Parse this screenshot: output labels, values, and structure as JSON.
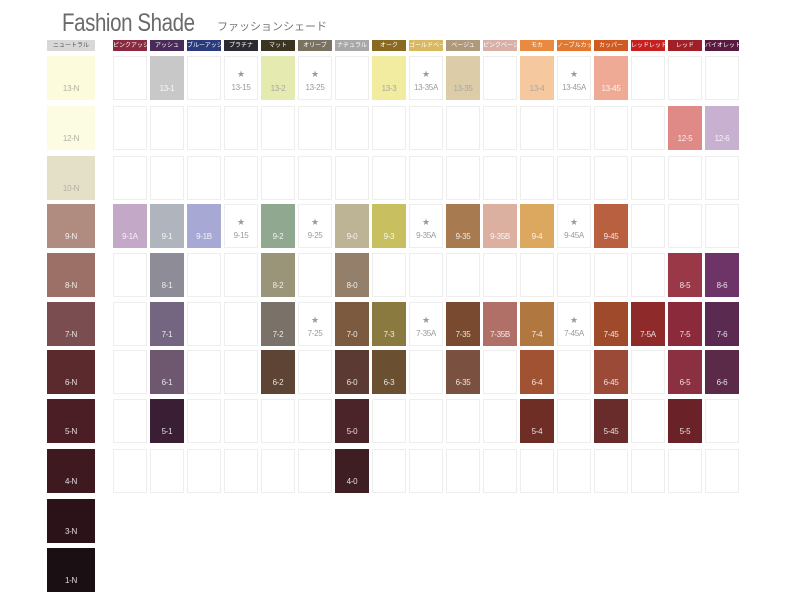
{
  "title": "Fashion Shade",
  "subtitle": "ファッションシェード",
  "neutral": {
    "header": {
      "label": "ニュートラル",
      "color": "#d8d8d8"
    },
    "shades": [
      {
        "label": "13-N",
        "color": "#fcfcdc"
      },
      {
        "label": "12-N",
        "color": "#fcfce2"
      },
      {
        "label": "10-N",
        "color": "#e4e0c8"
      },
      {
        "label": "9-N",
        "color": "#b08c80"
      },
      {
        "label": "8-N",
        "color": "#9c7066"
      },
      {
        "label": "7-N",
        "color": "#7a4e50"
      },
      {
        "label": "6-N",
        "color": "#5a2a2c"
      },
      {
        "label": "5-N",
        "color": "#4a1e24"
      },
      {
        "label": "4-N",
        "color": "#3e1a20"
      },
      {
        "label": "3-N",
        "color": "#2a1218"
      },
      {
        "label": "1-N",
        "color": "#1a1014"
      }
    ]
  },
  "columns": [
    {
      "label": "ピンクアッシュ",
      "color": "#8a2a40"
    },
    {
      "label": "アッシュ",
      "color": "#4a2a5a"
    },
    {
      "label": "ブルーアッシュ",
      "color": "#2a3a7a"
    },
    {
      "label": "プラチナ",
      "color": "#2a2a30"
    },
    {
      "label": "マット",
      "color": "#3a3420"
    },
    {
      "label": "オリーブ",
      "color": "#7a7260"
    },
    {
      "label": "ナチュラル",
      "color": "#a8a8a8"
    },
    {
      "label": "オーク",
      "color": "#8a6a20"
    },
    {
      "label": "ゴールドベージュ",
      "color": "#d8b860"
    },
    {
      "label": "ベージュ",
      "color": "#b0987a"
    },
    {
      "label": "ピンクベージュ",
      "color": "#d8b0a8"
    },
    {
      "label": "モカ",
      "color": "#e88a40"
    },
    {
      "label": "ノーブルカッパー",
      "color": "#e07830"
    },
    {
      "label": "カッパー",
      "color": "#d05a20"
    },
    {
      "label": "レッドレッド",
      "color": "#c82020"
    },
    {
      "label": "レッド",
      "color": "#a02028"
    },
    {
      "label": "バイオレット",
      "color": "#5a1a40"
    }
  ],
  "grid": [
    [
      null,
      {
        "label": "13-1",
        "color": "#c8c8c8"
      },
      null,
      {
        "label": "13-15",
        "star": true
      },
      {
        "label": "13-2",
        "color": "#e4eab0"
      },
      {
        "label": "13-25",
        "star": true
      },
      null,
      {
        "label": "13-3",
        "color": "#f2eca0"
      },
      {
        "label": "13-35A",
        "star": true
      },
      {
        "label": "13-35",
        "color": "#dccca8"
      },
      null,
      {
        "label": "13-4",
        "color": "#f6c8a0"
      },
      {
        "label": "13-45A",
        "star": true
      },
      {
        "label": "13-45",
        "color": "#eeaa94"
      },
      null,
      null,
      null
    ],
    [
      null,
      null,
      null,
      null,
      null,
      null,
      null,
      null,
      null,
      null,
      null,
      null,
      null,
      null,
      null,
      {
        "label": "12-5",
        "color": "#e08a88"
      },
      {
        "label": "12-6",
        "color": "#c8b0d0"
      }
    ],
    [
      null,
      null,
      null,
      null,
      null,
      null,
      null,
      null,
      null,
      null,
      null,
      null,
      null,
      null,
      null,
      null,
      null
    ],
    [
      {
        "label": "9-1A",
        "color": "#c4a8c8"
      },
      {
        "label": "9-1",
        "color": "#b0b4bc"
      },
      {
        "label": "9-1B",
        "color": "#a8a8d4"
      },
      {
        "label": "9-15",
        "star": true
      },
      {
        "label": "9-2",
        "color": "#90a890"
      },
      {
        "label": "9-25",
        "star": true
      },
      {
        "label": "9-0",
        "color": "#bcb494"
      },
      {
        "label": "9-3",
        "color": "#c8c060"
      },
      {
        "label": "9-35A",
        "star": true
      },
      {
        "label": "9-35",
        "color": "#a87a50"
      },
      {
        "label": "9-35B",
        "color": "#dcb0a0"
      },
      {
        "label": "9-4",
        "color": "#dca860"
      },
      {
        "label": "9-45A",
        "star": true
      },
      {
        "label": "9-45",
        "color": "#b86040"
      },
      null,
      null,
      null
    ],
    [
      null,
      {
        "label": "8-1",
        "color": "#8e8c96"
      },
      null,
      null,
      {
        "label": "8-2",
        "color": "#9a9478"
      },
      null,
      {
        "label": "8-0",
        "color": "#94806a"
      },
      null,
      null,
      null,
      null,
      null,
      null,
      null,
      null,
      {
        "label": "8-5",
        "color": "#9a3848"
      },
      {
        "label": "8-6",
        "color": "#6e3468"
      }
    ],
    [
      null,
      {
        "label": "7-1",
        "color": "#746680"
      },
      null,
      null,
      {
        "label": "7-2",
        "color": "#7a7268"
      },
      {
        "label": "7-25",
        "star": true
      },
      {
        "label": "7-0",
        "color": "#7c5a40"
      },
      {
        "label": "7-3",
        "color": "#8a7a40"
      },
      {
        "label": "7-35A",
        "star": true
      },
      {
        "label": "7-35",
        "color": "#7a4a30"
      },
      {
        "label": "7-35B",
        "color": "#b07068"
      },
      {
        "label": "7-4",
        "color": "#b07840"
      },
      {
        "label": "7-45A",
        "star": true
      },
      {
        "label": "7-45",
        "color": "#a04a2c"
      },
      {
        "label": "7-5A",
        "color": "#8e2a2a"
      },
      {
        "label": "7-5",
        "color": "#8a2a3a"
      },
      {
        "label": "7-6",
        "color": "#5a2a50"
      }
    ],
    [
      null,
      {
        "label": "6-1",
        "color": "#6e5870"
      },
      null,
      null,
      {
        "label": "6-2",
        "color": "#5e4434"
      },
      null,
      {
        "label": "6-0",
        "color": "#5c3a34"
      },
      {
        "label": "6-3",
        "color": "#6a5030"
      },
      null,
      {
        "label": "6-35",
        "color": "#7a5040"
      },
      null,
      {
        "label": "6-4",
        "color": "#a05232"
      },
      null,
      {
        "label": "6-45",
        "color": "#9a4a36"
      },
      null,
      {
        "label": "6-5",
        "color": "#8a3040"
      },
      {
        "label": "6-6",
        "color": "#5a2a48"
      }
    ],
    [
      null,
      {
        "label": "5-1",
        "color": "#3a1e34"
      },
      null,
      null,
      null,
      null,
      {
        "label": "5-0",
        "color": "#4a2428"
      },
      null,
      null,
      null,
      null,
      {
        "label": "5-4",
        "color": "#6e2e26"
      },
      null,
      {
        "label": "5-45",
        "color": "#6a2c2a"
      },
      null,
      {
        "label": "5-5",
        "color": "#6a2228"
      },
      null
    ],
    [
      null,
      null,
      null,
      null,
      null,
      null,
      {
        "label": "4-0",
        "color": "#3e1e22"
      },
      null,
      null,
      null,
      null,
      null,
      null,
      null,
      null,
      null,
      null
    ]
  ],
  "star_glyph": "★"
}
